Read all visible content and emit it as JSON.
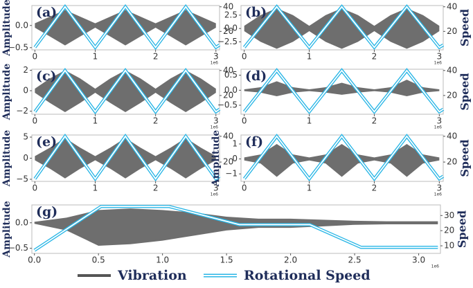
{
  "chart_data": [
    {
      "type": "line",
      "label": "(a)",
      "ylabel": "Amplitude",
      "x_offset": "1e6",
      "xlim": [
        -0.05,
        3.06
      ],
      "xticks": [
        0,
        1,
        2,
        3
      ],
      "ylim": [
        -0.55,
        0.45
      ],
      "yticks": [
        {
          "value": -0.5,
          "label": "−0.5"
        },
        {
          "value": 0,
          "label": "0.0"
        }
      ],
      "y2lim": [
        5,
        41
      ],
      "y2ticks": [
        20,
        40
      ],
      "series": [
        {
          "name": "Vibration",
          "color": "#555555",
          "x": [
            0,
            0.25,
            0.5,
            0.75,
            1,
            1.25,
            1.5,
            1.75,
            2,
            2.25,
            2.5,
            2.75,
            3
          ],
          "values": [
            0.05,
            0.2,
            0.35,
            0.2,
            0.05,
            0.2,
            0.35,
            0.2,
            0.05,
            0.2,
            0.35,
            0.2,
            0.05
          ],
          "lower": [
            -0.05,
            -0.25,
            -0.45,
            -0.25,
            -0.05,
            -0.25,
            -0.45,
            -0.25,
            -0.05,
            -0.25,
            -0.45,
            -0.25,
            -0.05
          ]
        },
        {
          "name": "Rotational Speed",
          "color": "#29b6e6",
          "axis": "y2",
          "x": [
            0,
            0.5,
            1,
            1.5,
            2,
            2.5,
            3,
            3.06
          ],
          "values": [
            7,
            40,
            7,
            40,
            7,
            40,
            7,
            9
          ]
        }
      ]
    },
    {
      "type": "line",
      "label": "(b)",
      "y2label": "Speed",
      "x_offset": "1e6",
      "xlim": [
        -0.05,
        3.06
      ],
      "xticks": [
        0,
        1,
        2,
        3
      ],
      "ylim": [
        -4,
        4.3
      ],
      "yticks": [
        {
          "value": -2.5,
          "label": "−2.5"
        },
        {
          "value": 0,
          "label": "0.0"
        },
        {
          "value": 2.5,
          "label": "2.5"
        }
      ],
      "y2lim": [
        5,
        41
      ],
      "y2ticks": [
        20,
        40
      ],
      "series": [
        {
          "name": "Vibration",
          "color": "#555555",
          "x": [
            0,
            0.25,
            0.5,
            0.75,
            1,
            1.25,
            1.5,
            1.75,
            2,
            2.25,
            2.5,
            2.75,
            3
          ],
          "values": [
            0.5,
            2.5,
            3.8,
            2.5,
            0.5,
            2.5,
            3.8,
            2.5,
            0.5,
            2.5,
            3.8,
            2.5,
            0.5
          ],
          "lower": [
            -0.5,
            -2.5,
            -3.8,
            -2.5,
            -0.5,
            -2.5,
            -3.8,
            -2.5,
            -0.5,
            -2.5,
            -3.8,
            -2.5,
            -0.5
          ]
        },
        {
          "name": "Rotational Speed",
          "color": "#29b6e6",
          "axis": "y2",
          "x": [
            0,
            0.5,
            1,
            1.5,
            2,
            2.5,
            3,
            3.06
          ],
          "values": [
            7,
            40,
            7,
            40,
            7,
            40,
            7,
            9
          ]
        }
      ]
    },
    {
      "type": "line",
      "label": "(c)",
      "ylabel": "Amplitude",
      "x_offset": "1e6",
      "xlim": [
        -0.05,
        3.06
      ],
      "xticks": [
        0,
        1,
        2,
        3
      ],
      "ylim": [
        -2.3,
        2.1
      ],
      "yticks": [
        {
          "value": -2,
          "label": "−2"
        },
        0,
        2
      ],
      "y2lim": [
        5,
        41
      ],
      "y2ticks": [
        20,
        40
      ],
      "series": [
        {
          "name": "Vibration",
          "color": "#555555",
          "x": [
            0,
            0.25,
            0.5,
            0.75,
            1,
            1.25,
            1.5,
            1.75,
            2,
            2.25,
            2.5,
            2.75,
            3
          ],
          "values": [
            0.2,
            1.2,
            2,
            1.2,
            0.2,
            1.2,
            2,
            1.2,
            0.2,
            1.2,
            2,
            1.2,
            0.2
          ],
          "lower": [
            -0.2,
            -1.2,
            -2.1,
            -1.2,
            -0.2,
            -1.2,
            -2.1,
            -1.2,
            -0.2,
            -1.2,
            -2.1,
            -1.2,
            -0.2
          ]
        },
        {
          "name": "Rotational Speed",
          "color": "#29b6e6",
          "axis": "y2",
          "x": [
            0,
            0.5,
            1,
            1.5,
            2,
            2.5,
            3,
            3.06
          ],
          "values": [
            7,
            40,
            7,
            40,
            7,
            40,
            7,
            9
          ]
        }
      ]
    },
    {
      "type": "line",
      "label": "(d)",
      "y2label": "Speed",
      "x_offset": "1e6",
      "xlim": [
        -0.05,
        3.06
      ],
      "xticks": [
        0,
        1,
        2,
        3
      ],
      "ylim": [
        -0.8,
        0.7
      ],
      "yticks": [
        {
          "value": -0.5,
          "label": "−0.5"
        },
        {
          "value": 0,
          "label": "0.0"
        },
        {
          "value": 0.5,
          "label": "0.5"
        }
      ],
      "y2lim": [
        5,
        41
      ],
      "y2ticks": [
        20,
        40
      ],
      "series": [
        {
          "name": "Vibration",
          "color": "#555555",
          "x": [
            0,
            0.25,
            0.5,
            0.75,
            1,
            1.25,
            1.5,
            1.75,
            2,
            2.25,
            2.5,
            2.75,
            3
          ],
          "values": [
            0.03,
            0.1,
            0.3,
            0.1,
            0.03,
            0.1,
            0.25,
            0.1,
            0.03,
            0.1,
            0.35,
            0.1,
            0.03
          ],
          "lower": [
            -0.03,
            -0.08,
            -0.2,
            -0.08,
            -0.03,
            -0.08,
            -0.15,
            -0.08,
            -0.03,
            -0.08,
            -0.2,
            -0.08,
            -0.03
          ]
        },
        {
          "name": "Rotational Speed",
          "color": "#29b6e6",
          "axis": "y2",
          "x": [
            0,
            0.5,
            1,
            1.5,
            2,
            2.5,
            3,
            3.06
          ],
          "values": [
            7,
            40,
            7,
            40,
            7,
            40,
            7,
            9
          ]
        }
      ]
    },
    {
      "type": "line",
      "label": "(e)",
      "ylabel": "Amplitude",
      "x_offset": "1e6",
      "xlim": [
        -0.05,
        3.06
      ],
      "xticks": [
        0,
        1,
        2,
        3
      ],
      "ylim": [
        -5.5,
        5.5
      ],
      "yticks": [
        {
          "value": -5,
          "label": "−5"
        },
        0,
        5
      ],
      "y2lim": [
        5,
        41
      ],
      "y2ticks": [
        20,
        40
      ],
      "series": [
        {
          "name": "Vibration",
          "color": "#555555",
          "x": [
            0,
            0.25,
            0.5,
            0.75,
            1,
            1.25,
            1.5,
            1.75,
            2,
            2.25,
            2.5,
            2.75,
            3
          ],
          "values": [
            0.5,
            2.5,
            4.8,
            2.5,
            0.5,
            2.5,
            4.8,
            2.5,
            0.5,
            2.5,
            4.8,
            2.5,
            0.5
          ],
          "lower": [
            -0.5,
            -2.5,
            -4.8,
            -2.5,
            -0.5,
            -2.5,
            -4.8,
            -2.5,
            -0.5,
            -2.5,
            -4.8,
            -2.5,
            -0.5
          ]
        },
        {
          "name": "Rotational Speed",
          "color": "#29b6e6",
          "axis": "y2",
          "x": [
            0,
            0.5,
            1,
            1.5,
            2,
            2.5,
            3,
            3.06
          ],
          "values": [
            7,
            40,
            7,
            40,
            7,
            40,
            7,
            9
          ]
        }
      ]
    },
    {
      "type": "line",
      "label": "(f)",
      "ylabel": "Amplitude",
      "y2label": "Speed",
      "x_offset": "1e6",
      "xlim": [
        -0.05,
        3.06
      ],
      "xticks": [
        0,
        1,
        2,
        3
      ],
      "ylim": [
        -1.5,
        1.6
      ],
      "yticks": [
        {
          "value": -1,
          "label": "−1"
        },
        0,
        1
      ],
      "y2lim": [
        5,
        41
      ],
      "y2ticks": [
        20,
        40
      ],
      "series": [
        {
          "name": "Vibration",
          "color": "#555555",
          "x": [
            0,
            0.25,
            0.5,
            0.75,
            1,
            1.25,
            1.5,
            1.75,
            2,
            2.25,
            2.5,
            2.75,
            3
          ],
          "values": [
            0.1,
            0.3,
            1,
            0.3,
            0.1,
            0.3,
            1,
            0.3,
            0.1,
            0.3,
            1,
            0.3,
            0.1
          ],
          "lower": [
            -0.1,
            -0.3,
            -1.2,
            -0.3,
            -0.1,
            -0.3,
            -1.2,
            -0.3,
            -0.1,
            -0.3,
            -1.2,
            -0.3,
            -0.1
          ]
        },
        {
          "name": "Rotational Speed",
          "color": "#29b6e6",
          "axis": "y2",
          "x": [
            0,
            0.5,
            1,
            1.5,
            2,
            2.5,
            3,
            3.06
          ],
          "values": [
            7,
            40,
            7,
            40,
            7,
            40,
            7,
            9
          ]
        }
      ]
    },
    {
      "type": "line",
      "label": "(g)",
      "ylabel": "Amplitude",
      "y2label": "Speed",
      "x_offset": "1e6",
      "xlim": [
        -0.02,
        3.17
      ],
      "xticks": [
        {
          "value": 0,
          "label": "0.0"
        },
        {
          "value": 0.5,
          "label": "0.5"
        },
        {
          "value": 1,
          "label": "1.0"
        },
        {
          "value": 1.5,
          "label": "1.5"
        },
        {
          "value": 2,
          "label": "2.0"
        },
        {
          "value": 2.5,
          "label": "2.5"
        },
        {
          "value": 3,
          "label": "3.0"
        }
      ],
      "ylim": [
        -0.6,
        0.35
      ],
      "yticks": [
        {
          "value": -0.5,
          "label": "−0.5"
        },
        {
          "value": 0,
          "label": "0.0"
        }
      ],
      "y2lim": [
        5,
        37
      ],
      "y2ticks": [
        10,
        20,
        30
      ],
      "series": [
        {
          "name": "Vibration",
          "color": "#555555",
          "x": [
            0,
            0.25,
            0.5,
            0.75,
            1,
            1.25,
            1.5,
            1.75,
            2,
            2.25,
            2.5,
            2.75,
            3,
            3.15
          ],
          "values": [
            0.02,
            0.1,
            0.25,
            0.28,
            0.25,
            0.2,
            0.12,
            0.08,
            0.08,
            0.06,
            0.04,
            0.03,
            0.03,
            0.03
          ],
          "lower": [
            -0.02,
            -0.15,
            -0.45,
            -0.42,
            -0.35,
            -0.25,
            -0.15,
            -0.1,
            -0.1,
            -0.07,
            -0.04,
            -0.03,
            -0.03,
            -0.03
          ]
        },
        {
          "name": "Rotational Speed",
          "color": "#29b6e6",
          "axis": "y2",
          "x": [
            0,
            0.52,
            1.05,
            1.6,
            2.15,
            2.55,
            3.15
          ],
          "values": [
            7,
            36,
            36,
            24,
            24,
            9,
            9
          ]
        }
      ]
    }
  ]
}
